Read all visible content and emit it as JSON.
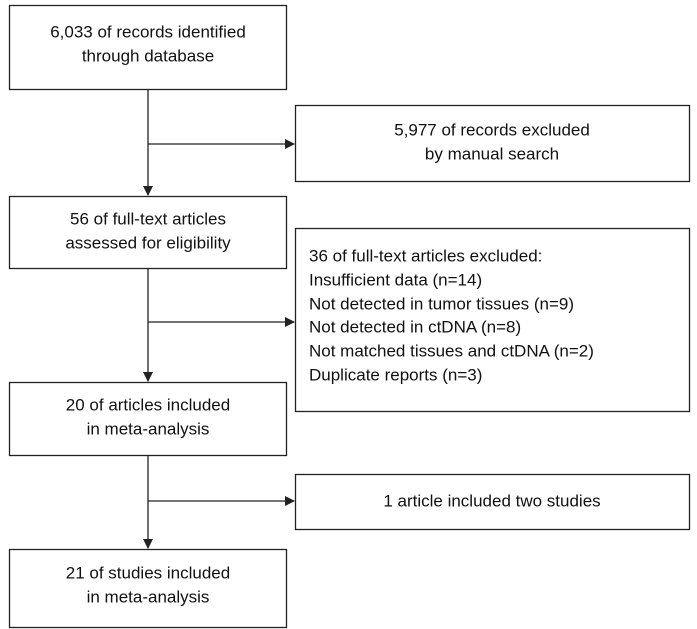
{
  "nodes": [
    {
      "lines": [
        "6,033 of records identified",
        "through database"
      ]
    },
    {
      "lines": [
        "56 of full-text articles",
        "assessed for eligibility"
      ]
    },
    {
      "lines": [
        "20 of articles included",
        "in meta-analysis"
      ]
    },
    {
      "lines": [
        "21 of studies included",
        "in meta-analysis"
      ]
    }
  ],
  "side_nodes": [
    {
      "lines": [
        "5,977 of records excluded",
        "by manual search"
      ]
    },
    {
      "lines": [
        "36 of full-text articles excluded:",
        "Insufficient data (n=14)",
        "Not detected in tumor tissues (n=9)",
        "Not detected in ctDNA (n=8)",
        "Not matched tissues and ctDNA (n=2)",
        "Duplicate reports (n=3)"
      ]
    },
    {
      "lines": [
        "1 article included two studies"
      ]
    }
  ]
}
